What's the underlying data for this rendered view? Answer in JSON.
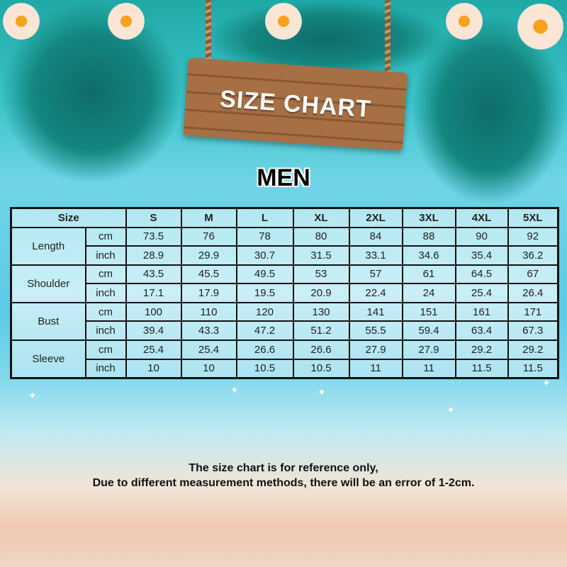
{
  "sign": {
    "title": "SIZE CHART"
  },
  "category": "MEN",
  "table": {
    "size_header": "Size",
    "sizes": [
      "S",
      "M",
      "L",
      "XL",
      "2XL",
      "3XL",
      "4XL",
      "5XL"
    ],
    "measurements": [
      {
        "name": "Length",
        "rows": [
          {
            "unit": "cm",
            "values": [
              "73.5",
              "76",
              "78",
              "80",
              "84",
              "88",
              "90",
              "92"
            ]
          },
          {
            "unit": "inch",
            "values": [
              "28.9",
              "29.9",
              "30.7",
              "31.5",
              "33.1",
              "34.6",
              "35.4",
              "36.2"
            ]
          }
        ]
      },
      {
        "name": "Shoulder",
        "rows": [
          {
            "unit": "cm",
            "values": [
              "43.5",
              "45.5",
              "49.5",
              "53",
              "57",
              "61",
              "64.5",
              "67"
            ]
          },
          {
            "unit": "inch",
            "values": [
              "17.1",
              "17.9",
              "19.5",
              "20.9",
              "22.4",
              "24",
              "25.4",
              "26.4"
            ]
          }
        ]
      },
      {
        "name": "Bust",
        "rows": [
          {
            "unit": "cm",
            "values": [
              "100",
              "110",
              "120",
              "130",
              "141",
              "151",
              "161",
              "171"
            ]
          },
          {
            "unit": "inch",
            "values": [
              "39.4",
              "43.3",
              "47.2",
              "51.2",
              "55.5",
              "59.4",
              "63.4",
              "67.3"
            ]
          }
        ]
      },
      {
        "name": "Sleeve",
        "rows": [
          {
            "unit": "cm",
            "values": [
              "25.4",
              "25.4",
              "26.6",
              "26.6",
              "27.9",
              "27.9",
              "29.2",
              "29.2"
            ]
          },
          {
            "unit": "inch",
            "values": [
              "10",
              "10",
              "10.5",
              "10.5",
              "11",
              "11",
              "11.5",
              "11.5"
            ]
          }
        ]
      }
    ]
  },
  "footer": {
    "line1": "The size chart is for reference only,",
    "line2": "Due to different measurement methods, there will be an error of 1-2cm."
  }
}
